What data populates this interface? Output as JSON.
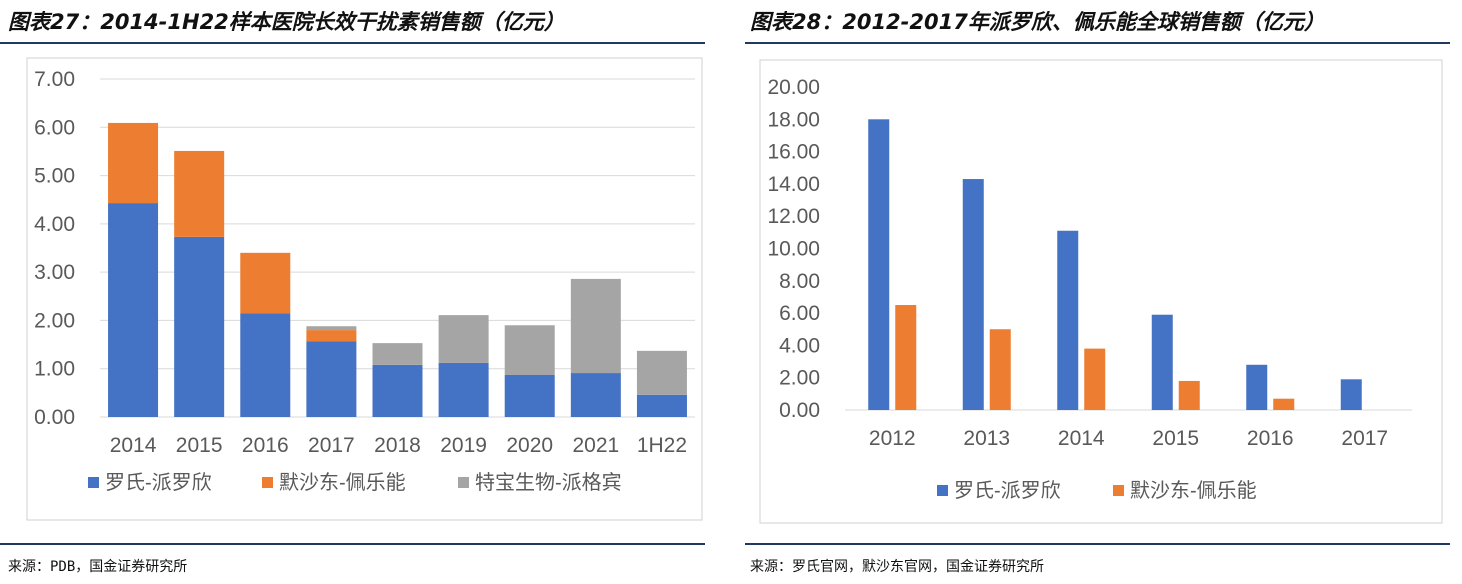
{
  "left": {
    "title": "图表27：2014-1H22样本医院长效干扰素销售额（亿元）",
    "source": "来源：PDB，国金证券研究所"
  },
  "right": {
    "title": "图表28：2012-2017年派罗欣、佩乐能全球销售额（亿元）",
    "source": "来源：罗氏官网，默沙东官网，国金证券研究所"
  },
  "chart_data": [
    {
      "type": "bar",
      "stacked": true,
      "categories": [
        "2014",
        "2015",
        "2016",
        "2017",
        "2018",
        "2019",
        "2020",
        "2021",
        "1H22"
      ],
      "ylim": [
        0,
        7
      ],
      "yticks": [
        "0.00",
        "1.00",
        "2.00",
        "3.00",
        "4.00",
        "5.00",
        "6.00",
        "7.00"
      ],
      "grid": true,
      "legend": "bottom",
      "series": [
        {
          "name": "罗氏-派罗欣",
          "color": "#4472C4",
          "values": [
            4.43,
            3.73,
            2.15,
            1.57,
            1.08,
            1.12,
            0.87,
            0.91,
            0.46
          ]
        },
        {
          "name": "默沙东-佩乐能",
          "color": "#ED7D31",
          "values": [
            1.66,
            1.78,
            1.25,
            0.23,
            0,
            0,
            0,
            0,
            0
          ]
        },
        {
          "name": "特宝生物-派格宾",
          "color": "#A5A5A5",
          "values": [
            0,
            0,
            0,
            0.08,
            0.45,
            0.99,
            1.03,
            1.95,
            0.91
          ]
        }
      ]
    },
    {
      "type": "bar",
      "stacked": false,
      "categories": [
        "2012",
        "2013",
        "2014",
        "2015",
        "2016",
        "2017"
      ],
      "ylim": [
        0,
        20
      ],
      "yticks": [
        "0.00",
        "2.00",
        "4.00",
        "6.00",
        "8.00",
        "10.00",
        "12.00",
        "14.00",
        "16.00",
        "18.00",
        "20.00"
      ],
      "grid": false,
      "legend": "bottom",
      "series": [
        {
          "name": "罗氏-派罗欣",
          "color": "#4472C4",
          "values": [
            18.0,
            14.3,
            11.1,
            5.9,
            2.8,
            1.9
          ]
        },
        {
          "name": "默沙东-佩乐能",
          "color": "#ED7D31",
          "values": [
            6.5,
            5.0,
            3.8,
            1.8,
            0.7,
            0
          ]
        }
      ]
    }
  ]
}
